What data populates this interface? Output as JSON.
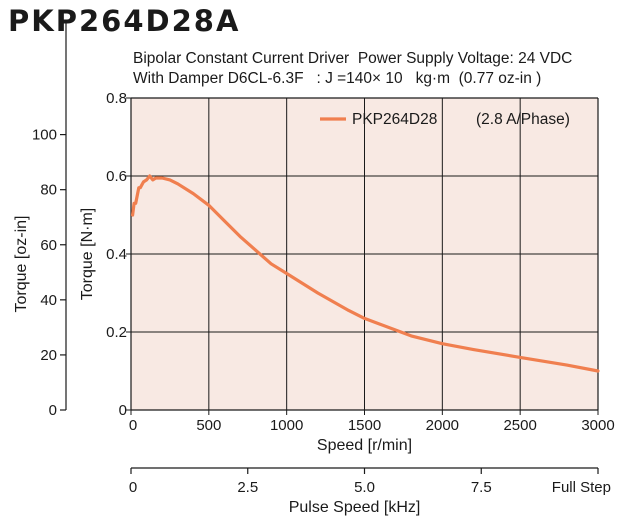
{
  "header": {
    "model": "PKP264D28A",
    "line1": "Bipolar Constant Current Driver  Power Supply Voltage: 24 VDC",
    "line2": "With Damper D6CL-6.3F   : J =140× 10   kg·m  (0.77 oz-in )"
  },
  "colors": {
    "plot_background": "#f8e9e3",
    "grid": "#1a1a1a",
    "series": "#f07f4f"
  },
  "chart_data": {
    "type": "line",
    "title": "",
    "xlabel": "Speed [r/min]",
    "ylabel": "Torque [N·m]",
    "y2label": "Torque [oz-in]",
    "x2label": "Pulse Speed [kHz]",
    "xlim": [
      0,
      3000
    ],
    "ylim": [
      0,
      0.8
    ],
    "x_ticks": [
      "0",
      "500",
      "1000",
      "1500",
      "2000",
      "2500",
      "3000"
    ],
    "y_ticks": [
      "0",
      "0.2",
      "0.4",
      "0.6",
      "0.8"
    ],
    "oz_ticks": [
      "0",
      "20",
      "40",
      "60",
      "80",
      "100"
    ],
    "pulse_ticks": [
      "0",
      "2.5",
      "5.0",
      "7.5",
      "Full Step"
    ],
    "grid": true,
    "legend_position": "top-right",
    "series": [
      {
        "name": "PKP264D28",
        "note": "(2.8 A/Phase)",
        "x": [
          10,
          20,
          30,
          50,
          60,
          80,
          100,
          120,
          140,
          160,
          200,
          250,
          300,
          400,
          500,
          600,
          700,
          800,
          900,
          1000,
          1200,
          1400,
          1500,
          1600,
          1800,
          2000,
          2200,
          2500,
          2800,
          3000
        ],
        "y": [
          0.5,
          0.53,
          0.53,
          0.57,
          0.57,
          0.585,
          0.59,
          0.6,
          0.59,
          0.595,
          0.595,
          0.59,
          0.58,
          0.555,
          0.525,
          0.485,
          0.445,
          0.41,
          0.375,
          0.35,
          0.3,
          0.255,
          0.235,
          0.22,
          0.19,
          0.17,
          0.155,
          0.135,
          0.115,
          0.1
        ]
      }
    ]
  }
}
